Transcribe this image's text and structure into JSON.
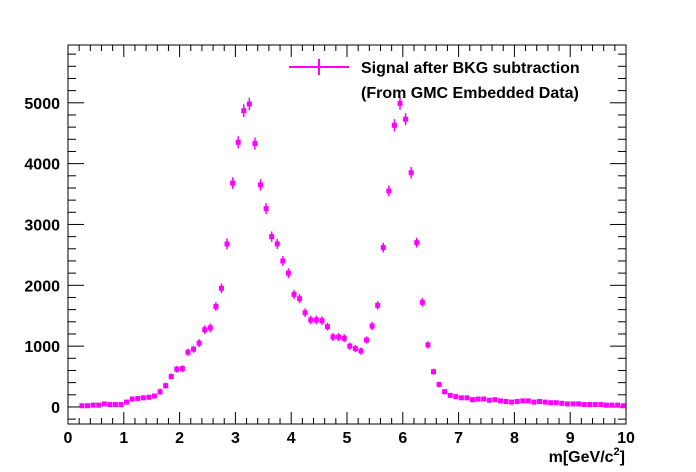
{
  "chart_data": {
    "type": "scatter",
    "title": "",
    "xlabel": "m[GeV/c",
    "xlabel_superscript": "2",
    "xlabel_suffix": "]",
    "ylabel": "",
    "xlim": [
      0,
      10
    ],
    "ylim": [
      -280,
      5950
    ],
    "x_ticks": [
      0,
      1,
      2,
      3,
      4,
      5,
      6,
      7,
      8,
      9,
      10
    ],
    "y_ticks": [
      0,
      1000,
      2000,
      3000,
      4000,
      5000
    ],
    "grid": false,
    "legend_position": "top-right",
    "series": [
      {
        "name": "Signal after  BKG subtraction",
        "name_line2": "(From GMC Embedded Data)",
        "color": "#ff00ff",
        "x": [
          0.25,
          0.35,
          0.45,
          0.55,
          0.65,
          0.75,
          0.85,
          0.95,
          1.05,
          1.15,
          1.25,
          1.35,
          1.45,
          1.55,
          1.65,
          1.75,
          1.85,
          1.95,
          2.05,
          2.15,
          2.25,
          2.35,
          2.45,
          2.55,
          2.65,
          2.75,
          2.85,
          2.95,
          3.05,
          3.15,
          3.25,
          3.35,
          3.45,
          3.55,
          3.65,
          3.75,
          3.85,
          3.95,
          4.05,
          4.15,
          4.25,
          4.35,
          4.45,
          4.55,
          4.65,
          4.75,
          4.85,
          4.95,
          5.05,
          5.15,
          5.25,
          5.35,
          5.45,
          5.55,
          5.65,
          5.75,
          5.85,
          5.95,
          6.05,
          6.15,
          6.25,
          6.35,
          6.45,
          6.55,
          6.65,
          6.75,
          6.85,
          6.95,
          7.05,
          7.15,
          7.25,
          7.35,
          7.45,
          7.55,
          7.65,
          7.75,
          7.85,
          7.95,
          8.05,
          8.15,
          8.25,
          8.35,
          8.45,
          8.55,
          8.65,
          8.75,
          8.85,
          8.95,
          9.05,
          9.15,
          9.25,
          9.35,
          9.45,
          9.55,
          9.65,
          9.75,
          9.85,
          9.95
        ],
        "y": [
          20,
          20,
          30,
          30,
          50,
          40,
          40,
          40,
          80,
          130,
          140,
          150,
          160,
          180,
          250,
          350,
          500,
          620,
          630,
          900,
          950,
          1050,
          1270,
          1300,
          1650,
          1950,
          2680,
          3680,
          4350,
          4870,
          4980,
          4330,
          3650,
          3260,
          2800,
          2680,
          2400,
          2200,
          1850,
          1780,
          1550,
          1430,
          1430,
          1420,
          1320,
          1150,
          1150,
          1130,
          1000,
          960,
          920,
          1100,
          1330,
          1670,
          2620,
          3550,
          4630,
          4990,
          4730,
          3850,
          2700,
          1720,
          1020,
          580,
          370,
          250,
          190,
          170,
          150,
          150,
          120,
          130,
          130,
          110,
          120,
          100,
          90,
          80,
          90,
          100,
          100,
          80,
          90,
          80,
          70,
          70,
          60,
          50,
          50,
          50,
          40,
          40,
          40,
          40,
          30,
          30,
          30,
          20
        ],
        "yerr": [
          30,
          30,
          30,
          30,
          30,
          30,
          30,
          30,
          40,
          40,
          40,
          40,
          40,
          40,
          50,
          50,
          50,
          55,
          55,
          60,
          60,
          65,
          70,
          70,
          75,
          80,
          90,
          95,
          100,
          105,
          105,
          100,
          95,
          90,
          85,
          85,
          80,
          80,
          75,
          75,
          70,
          70,
          70,
          70,
          65,
          65,
          65,
          65,
          60,
          60,
          60,
          60,
          65,
          70,
          80,
          90,
          100,
          105,
          100,
          95,
          80,
          70,
          60,
          50,
          45,
          40,
          35,
          35,
          35,
          35,
          35,
          35,
          35,
          35,
          35,
          35,
          35,
          35,
          35,
          35,
          35,
          35,
          35,
          35,
          35,
          35,
          30,
          30,
          30,
          30,
          30,
          30,
          30,
          30,
          30,
          30,
          30,
          30
        ]
      }
    ]
  }
}
